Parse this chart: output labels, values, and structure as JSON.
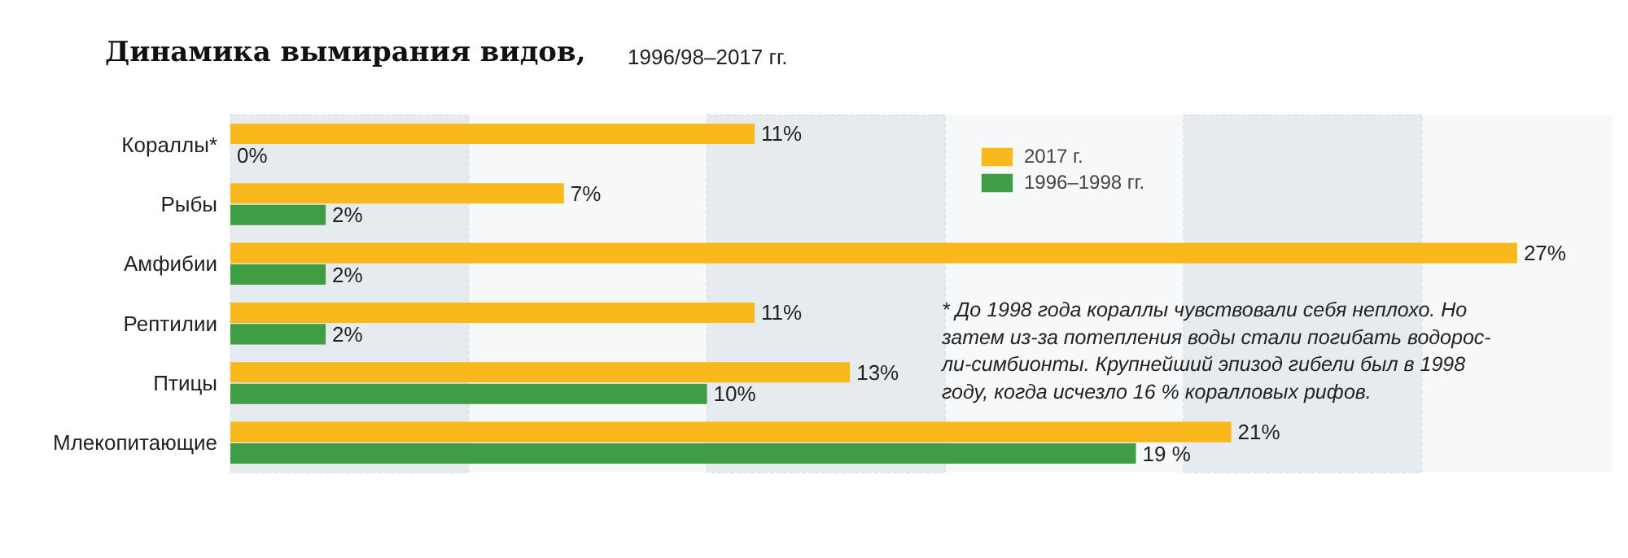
{
  "chart_data": {
    "type": "bar",
    "orientation": "horizontal",
    "title": "Динамика вымирания видов,",
    "subtitle": "1996/98–2017 гг.",
    "categories": [
      "Кораллы*",
      "Рыбы",
      "Амфибии",
      "Рептилии",
      "Птицы",
      "Млекопитающие"
    ],
    "series": [
      {
        "name": "2017 г.",
        "color": "#f9b81c",
        "values": [
          11,
          7,
          27,
          11,
          13,
          21
        ],
        "value_labels": [
          "11%",
          "7%",
          "27%",
          "11%",
          "13%",
          "21%"
        ]
      },
      {
        "name": "1996–1998 гг.",
        "color": "#3f9d45",
        "values": [
          0,
          2,
          2,
          2,
          10,
          19
        ],
        "value_labels": [
          "0%",
          "2%",
          "2%",
          "2%",
          "10%",
          "19 %"
        ]
      }
    ],
    "xlim": [
      0,
      29
    ],
    "tick_labels": "y",
    "legend": "top right",
    "bands": [
      {
        "axis": "x",
        "from": 0,
        "to": 5,
        "color": "#e5ebef"
      },
      {
        "axis": "x",
        "from": 10,
        "to": 15,
        "color": "#e5ebef"
      },
      {
        "axis": "x",
        "from": 20,
        "to": 25,
        "color": "#e5ebef"
      }
    ],
    "annotations": [
      "* До 1998 года кораллы чувствовали себя неплохо. Но\nзатем из-за потепления воды стали погибать водорос-\nли-симбионты. Крупнейший эпизод гибели был в 1998\nгоду, когда исчезло 16 % коралловых рифов."
    ]
  }
}
